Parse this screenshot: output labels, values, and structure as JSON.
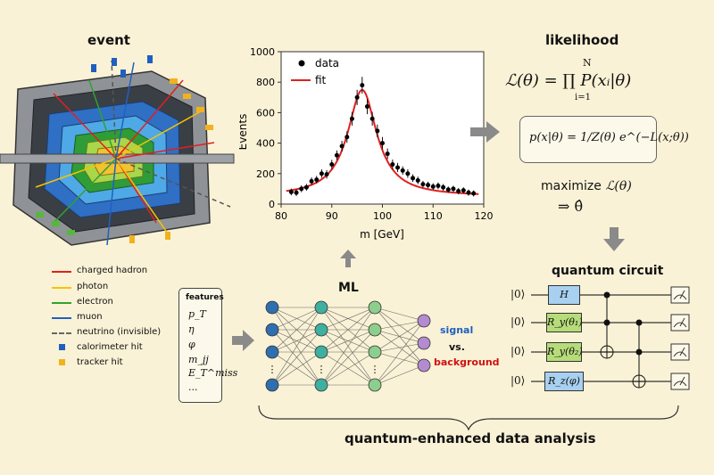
{
  "labels": {
    "event": "event",
    "likelihood": "likelihood",
    "ml": "ML",
    "quantum_circuit": "quantum circuit",
    "bottom": "quantum-enhanced data analysis",
    "signal": "signal",
    "vs": "vs.",
    "background": "background",
    "features_title": "features",
    "maximize": "maximize",
    "arrow_theta": "⇒ θ̂"
  },
  "legend": [
    {
      "label": "charged hadron",
      "color": "#e02020",
      "kind": "line"
    },
    {
      "label": "photon",
      "color": "#f5c400",
      "kind": "line"
    },
    {
      "label": "electron",
      "color": "#2fa32f",
      "kind": "line"
    },
    {
      "label": "muon",
      "color": "#2060c0",
      "kind": "line"
    },
    {
      "label": "neutrino (invisible)",
      "color": "#666666",
      "kind": "dash"
    },
    {
      "label": "calorimeter hit",
      "color": "#1f5fbf",
      "kind": "square"
    },
    {
      "label": "tracker hit",
      "color": "#f2b21c",
      "kind": "square"
    }
  ],
  "features": [
    "p_T",
    "η",
    "φ",
    "m_jj",
    "E_T^miss",
    "..."
  ],
  "formulas": {
    "likelihood_main": "ℒ(θ) = ∏ P(xᵢ|θ)",
    "prod_upper": "N",
    "prod_lower": "i=1",
    "pdf": "p(x|θ) = 1/Z(θ) e^(−L(x;θ))",
    "maximize_L": "ℒ(θ)"
  },
  "circuit": {
    "qubits": [
      "|0⟩",
      "|0⟩",
      "|0⟩",
      "|0⟩"
    ],
    "gates": [
      "H",
      "R_y(θ₁)",
      "R_y(θ₂)",
      "R_z(φ)"
    ]
  },
  "chart_data": {
    "type": "scatter",
    "title": "",
    "xlabel": "m [GeV]",
    "ylabel": "Events",
    "xlim": [
      80,
      120
    ],
    "ylim": [
      0,
      1000
    ],
    "xticks": [
      80,
      90,
      100,
      110,
      120
    ],
    "yticks": [
      0,
      200,
      400,
      600,
      800,
      1000
    ],
    "legend_position": "top-left",
    "series": [
      {
        "name": "data",
        "x": [
          82,
          83,
          84,
          85,
          86,
          87,
          88,
          89,
          90,
          91,
          92,
          93,
          94,
          95,
          96,
          97,
          98,
          99,
          100,
          101,
          102,
          103,
          104,
          105,
          106,
          107,
          108,
          109,
          110,
          111,
          112,
          113,
          114,
          115,
          116,
          117,
          118
        ],
        "y": [
          80,
          75,
          100,
          110,
          150,
          160,
          200,
          195,
          260,
          320,
          380,
          440,
          560,
          700,
          780,
          640,
          560,
          480,
          400,
          330,
          260,
          240,
          220,
          200,
          170,
          155,
          130,
          125,
          115,
          120,
          110,
          95,
          100,
          85,
          90,
          75,
          70
        ],
        "yerr": [
          22,
          22,
          22,
          22,
          25,
          25,
          28,
          28,
          30,
          32,
          35,
          38,
          45,
          50,
          55,
          50,
          45,
          42,
          40,
          35,
          32,
          30,
          28,
          28,
          25,
          25,
          22,
          22,
          22,
          22,
          22,
          20,
          20,
          20,
          20,
          20,
          20
        ]
      },
      {
        "name": "fit",
        "color": "#e02020",
        "peak_mass": 96,
        "width": 7,
        "amplitude": 700,
        "baseline": 50
      }
    ]
  }
}
